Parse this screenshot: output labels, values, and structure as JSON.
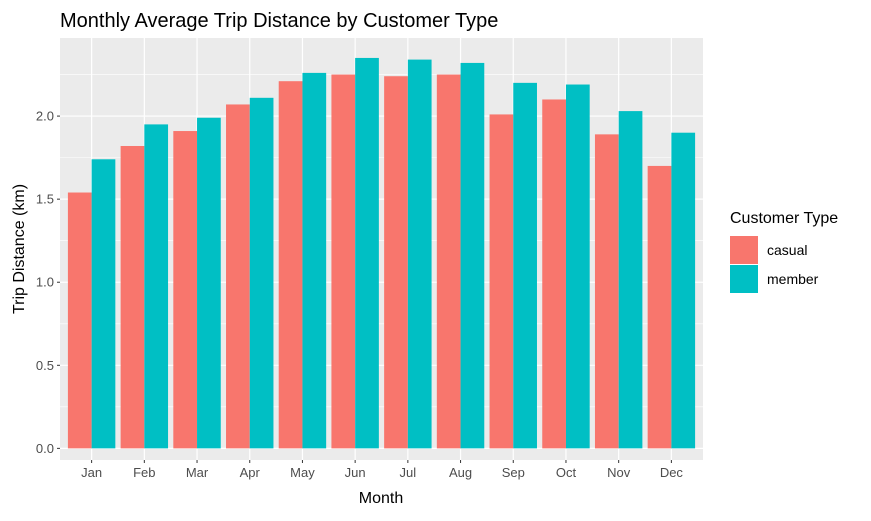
{
  "chart_data": {
    "type": "bar",
    "title": "Monthly Average Trip Distance by Customer Type",
    "xlabel": "Month",
    "ylabel": "Trip Distance (km)",
    "categories": [
      "Jan",
      "Feb",
      "Mar",
      "Apr",
      "May",
      "Jun",
      "Jul",
      "Aug",
      "Sep",
      "Oct",
      "Nov",
      "Dec"
    ],
    "series": [
      {
        "name": "casual",
        "color": "#F8766D",
        "values": [
          1.54,
          1.82,
          1.91,
          2.07,
          2.21,
          2.25,
          2.24,
          2.25,
          2.01,
          2.1,
          1.89,
          1.7
        ]
      },
      {
        "name": "member",
        "color": "#00BFC4",
        "values": [
          1.74,
          1.95,
          1.99,
          2.11,
          2.26,
          2.35,
          2.34,
          2.32,
          2.2,
          2.19,
          2.03,
          1.9
        ]
      }
    ],
    "yticks": [
      "0.0",
      "0.5",
      "1.0",
      "1.5",
      "2.0"
    ],
    "ylim": [
      -0.07,
      2.47
    ],
    "legend": {
      "title": "Customer Type",
      "position": "right"
    },
    "grid": true,
    "panel_background": "#EBEBEB"
  }
}
